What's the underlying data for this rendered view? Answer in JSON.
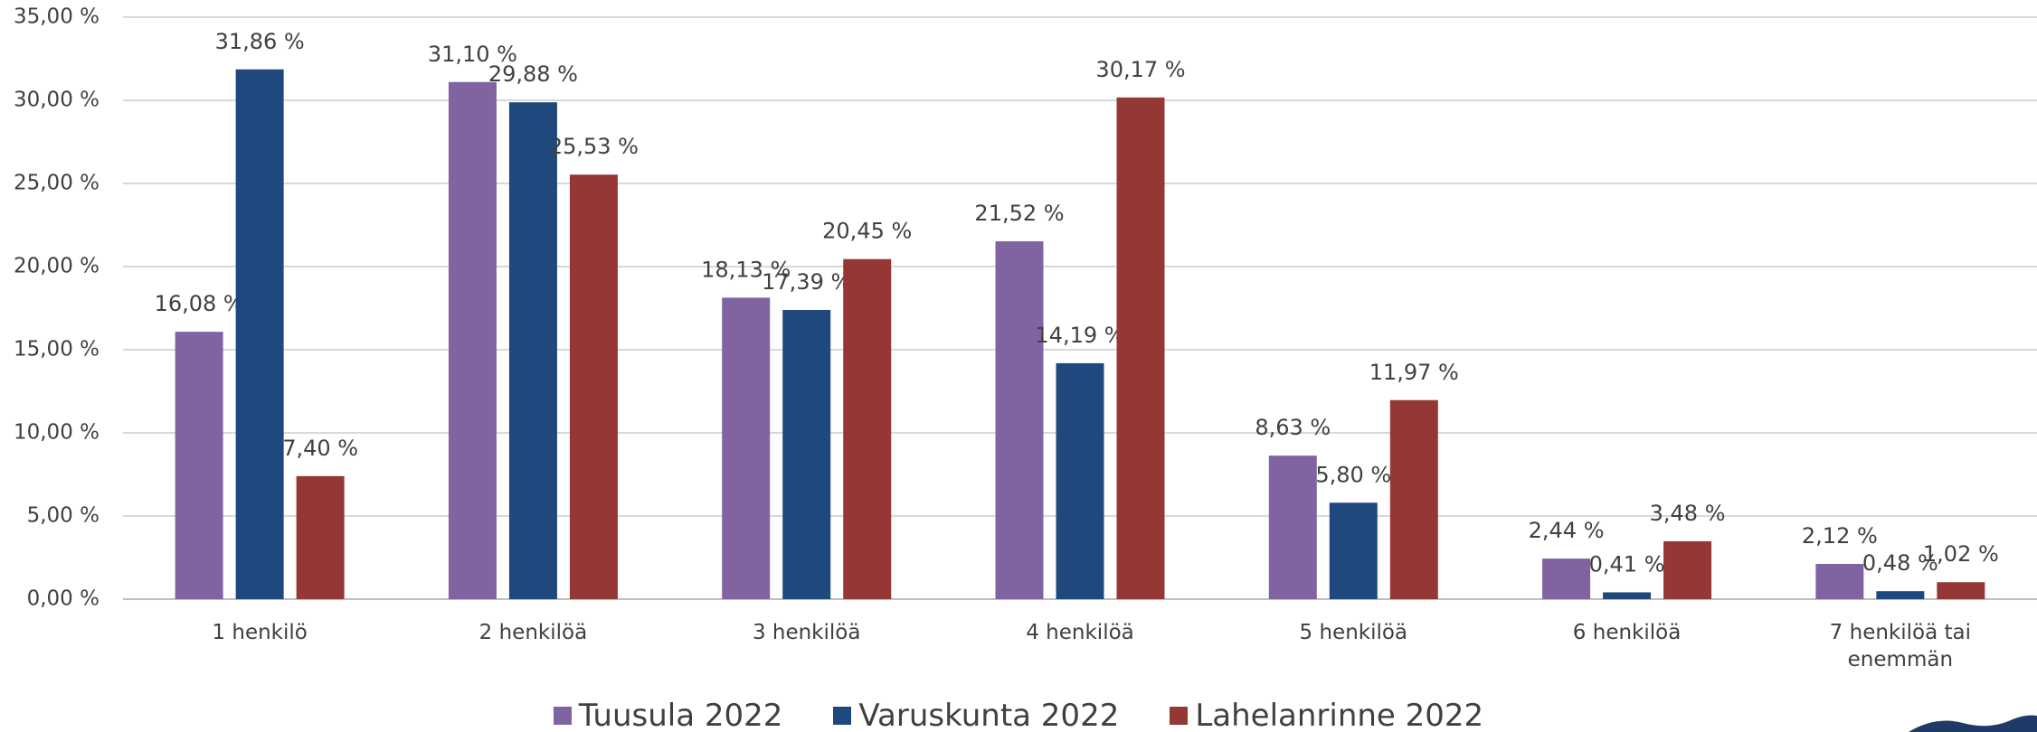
{
  "chart_data": {
    "type": "bar",
    "categories": [
      "1 henkilö",
      "2 henkilöä",
      "3 henkilöä",
      "4 henkilöä",
      "5 henkilöä",
      "6 henkilöä",
      "7 henkilöä tai enemmän"
    ],
    "series": [
      {
        "name": "Tuusula 2022",
        "color": "#8064a2",
        "values": [
          16.08,
          31.1,
          18.13,
          21.52,
          8.63,
          2.44,
          2.12
        ],
        "value_labels": [
          "16,08 %",
          "31,10 %",
          "18,13 %",
          "21,52 %",
          "8,63 %",
          "2,44 %",
          "2,12 %"
        ]
      },
      {
        "name": "Varuskunta 2022",
        "color": "#1f497d",
        "values": [
          31.86,
          29.88,
          17.39,
          14.19,
          5.8,
          0.41,
          0.48
        ],
        "value_labels": [
          "31,86 %",
          "29,88 %",
          "17,39 %",
          "14,19 %",
          "5,80 %",
          "0,41 %",
          "0,48 %"
        ]
      },
      {
        "name": "Lahelanrinne 2022",
        "color": "#953735",
        "values": [
          7.4,
          25.53,
          20.45,
          30.17,
          11.97,
          3.48,
          1.02
        ],
        "value_labels": [
          "7,40 %",
          "25,53 %",
          "20,45 %",
          "30,17 %",
          "11,97 %",
          "3,48 %",
          "1,02 %"
        ]
      }
    ],
    "ylim": [
      0,
      35
    ],
    "yticks": [
      {
        "value": 0,
        "label": "0,00 %"
      },
      {
        "value": 5,
        "label": "5,00 %"
      },
      {
        "value": 10,
        "label": "10,00 %"
      },
      {
        "value": 15,
        "label": "15,00 %"
      },
      {
        "value": 20,
        "label": "20,00 %"
      },
      {
        "value": 25,
        "label": "25,00 %"
      },
      {
        "value": 30,
        "label": "30,00 %"
      },
      {
        "value": 35,
        "label": "35,00 %"
      }
    ],
    "grid": true,
    "legend": "bottom"
  }
}
